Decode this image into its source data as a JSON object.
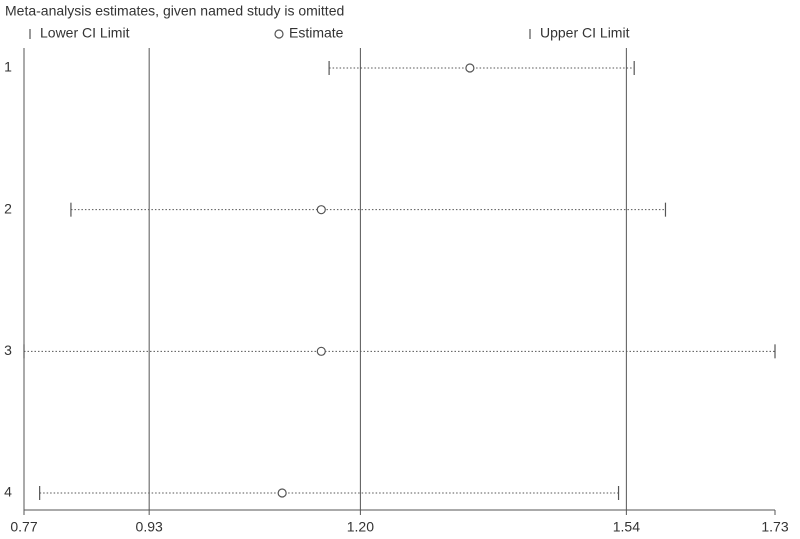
{
  "chart_data": {
    "type": "ci-dot",
    "title": "Meta-analysis estimates, given named study is omitted",
    "categories": [
      "1",
      "2",
      "3",
      "4"
    ],
    "series": [
      {
        "name": "Lower CI Limit",
        "color": "#555555",
        "values": [
          1.16,
          0.83,
          0.77,
          0.79
        ]
      },
      {
        "name": "Estimate",
        "color": "#555555",
        "values": [
          1.34,
          1.15,
          1.15,
          1.1
        ]
      },
      {
        "name": "Upper CI Limit",
        "color": "#555555",
        "values": [
          1.55,
          1.59,
          1.73,
          1.53
        ]
      }
    ],
    "xlim": [
      0.77,
      1.73
    ],
    "xticks": [
      0.77,
      0.93,
      {
        "value": 1.2,
        "label": "1.20"
      },
      1.54,
      1.73
    ],
    "grid": true
  }
}
